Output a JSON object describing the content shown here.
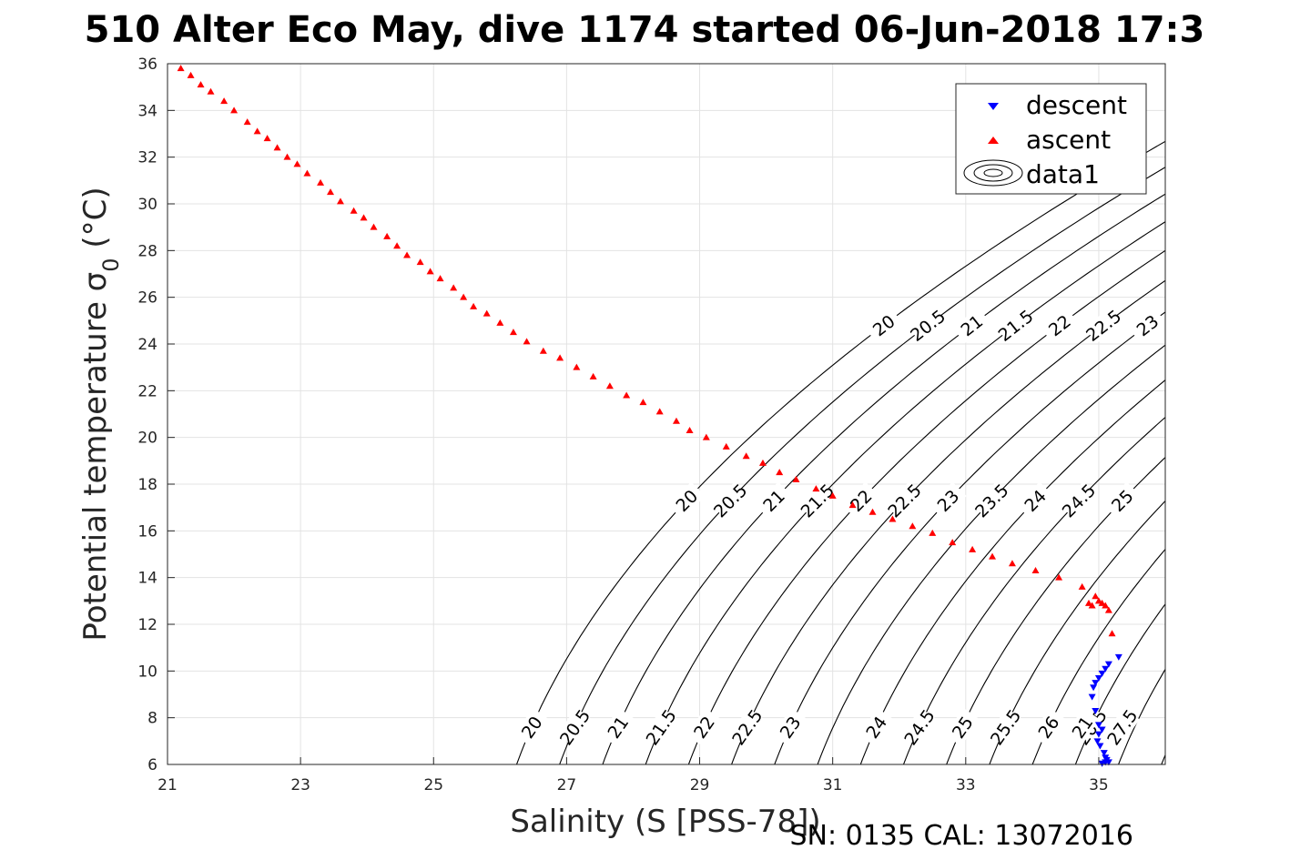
{
  "title": "510 Alter Eco May, dive 1174 started 06-Jun-2018 17:3",
  "footer": "SN: 0135  CAL: 13072016",
  "chart_data": {
    "type": "scatter",
    "xlabel": "Salinity (S [PSS-78])",
    "ylabel_main": "Potential temperature σ",
    "ylabel_sub": "0",
    "ylabel_unit": " (°C)",
    "xlim": [
      21,
      36
    ],
    "ylim": [
      6,
      36
    ],
    "xticks": [
      21,
      23,
      25,
      27,
      29,
      31,
      33,
      35
    ],
    "yticks": [
      6,
      8,
      10,
      12,
      14,
      16,
      18,
      20,
      22,
      24,
      26,
      28,
      30,
      32,
      34,
      36
    ],
    "grid": true,
    "legend_position": "top-right",
    "colors": {
      "descent": "#0000ff",
      "ascent": "#ff0000",
      "contour": "#000000",
      "grid": "#e3e3e3"
    },
    "contours": {
      "levels": [
        20,
        20.5,
        21,
        21.5,
        22,
        22.5,
        23,
        23.5,
        24,
        24.5,
        25,
        25.5,
        26,
        26.5,
        27,
        27.5
      ],
      "labels_upper": [
        "20",
        "20.5",
        "21",
        "21.5",
        "22",
        "22.5",
        "23",
        "23.5"
      ],
      "labels_middle": [
        "20",
        "20.5",
        "21",
        "21.5",
        "22",
        "22.5",
        "23",
        "23.5",
        "24",
        "24.5",
        "25",
        "25.5",
        "26"
      ],
      "labels_lower": [
        "20",
        "20.5",
        "21",
        "21.5",
        "22",
        "22.5",
        "23",
        "24",
        "24.5",
        "25",
        "25.5",
        "26",
        "26.5",
        "21",
        "27.5"
      ]
    },
    "series": [
      {
        "name": "descent",
        "marker": "triangle-down",
        "x": [
          35.3,
          35.15,
          35.1,
          35.05,
          35.0,
          34.95,
          34.92,
          34.9,
          34.95,
          35.0,
          35.05,
          35.0,
          34.98,
          35.02,
          35.08,
          35.1,
          35.12,
          35.1,
          35.15,
          35.05
        ],
        "y": [
          10.6,
          10.3,
          10.1,
          9.9,
          9.7,
          9.5,
          9.3,
          8.9,
          8.3,
          7.7,
          7.5,
          7.3,
          7.0,
          6.8,
          6.5,
          6.3,
          6.2,
          6.1,
          6.1,
          6.05
        ]
      },
      {
        "name": "ascent",
        "marker": "triangle-up",
        "x": [
          21.2,
          21.35,
          21.5,
          21.65,
          21.85,
          22.0,
          22.2,
          22.35,
          22.5,
          22.65,
          22.8,
          22.95,
          23.1,
          23.3,
          23.45,
          23.6,
          23.8,
          23.95,
          24.1,
          24.3,
          24.45,
          24.6,
          24.8,
          24.95,
          25.1,
          25.3,
          25.45,
          25.6,
          25.8,
          26.0,
          26.2,
          26.4,
          26.65,
          26.9,
          27.15,
          27.4,
          27.65,
          27.9,
          28.15,
          28.4,
          28.65,
          28.85,
          29.1,
          29.4,
          29.7,
          29.95,
          30.2,
          30.45,
          30.75,
          31.0,
          31.3,
          31.6,
          31.9,
          32.2,
          32.5,
          32.8,
          33.1,
          33.4,
          33.7,
          34.05,
          34.4,
          34.75,
          34.85,
          34.9,
          34.95,
          35.0,
          35.05,
          35.1,
          35.15,
          35.2
        ],
        "y": [
          35.8,
          35.5,
          35.1,
          34.8,
          34.4,
          34.0,
          33.5,
          33.1,
          32.8,
          32.4,
          32.0,
          31.7,
          31.3,
          30.9,
          30.5,
          30.1,
          29.7,
          29.4,
          29.0,
          28.6,
          28.2,
          27.8,
          27.5,
          27.1,
          26.8,
          26.4,
          26.0,
          25.6,
          25.3,
          24.9,
          24.5,
          24.1,
          23.7,
          23.4,
          23.0,
          22.6,
          22.2,
          21.8,
          21.5,
          21.1,
          20.7,
          20.3,
          20.0,
          19.6,
          19.2,
          18.9,
          18.5,
          18.2,
          17.8,
          17.5,
          17.1,
          16.8,
          16.5,
          16.2,
          15.9,
          15.5,
          15.2,
          14.9,
          14.6,
          14.3,
          14.0,
          13.6,
          12.9,
          12.8,
          13.2,
          13.0,
          12.9,
          12.8,
          12.6,
          11.6
        ]
      }
    ],
    "legend": [
      "descent",
      "ascent",
      "data1"
    ]
  }
}
